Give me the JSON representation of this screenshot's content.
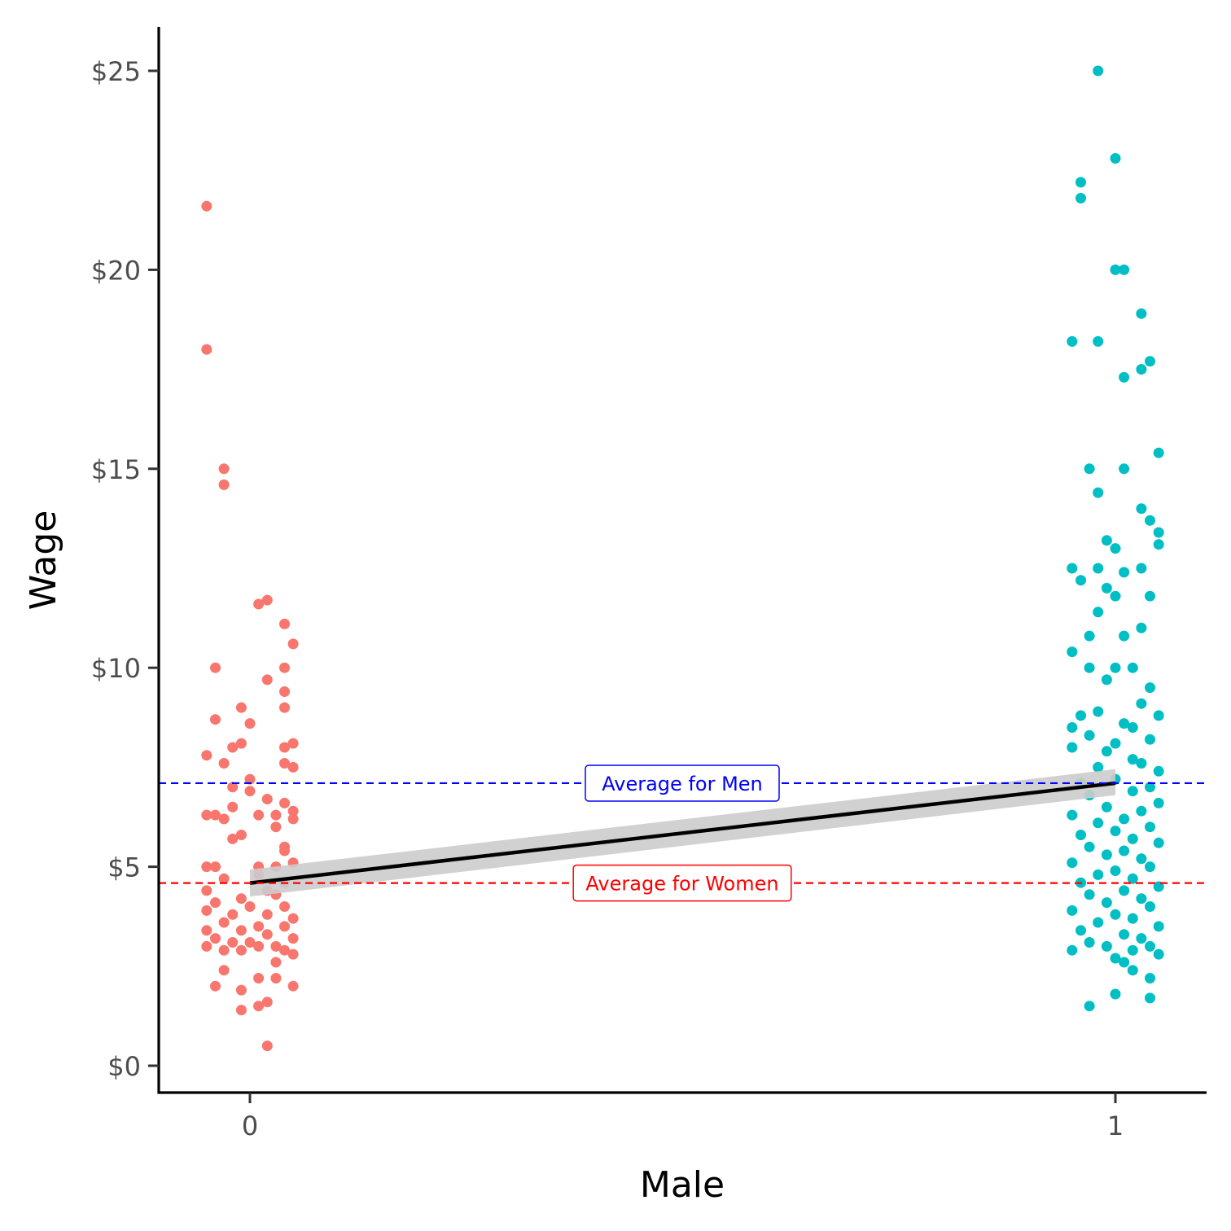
{
  "chart_data": {
    "type": "scatter",
    "xlabel": "Male",
    "ylabel": "Wage",
    "x_ticks": [
      "0",
      "1"
    ],
    "y_ticks": [
      "$0",
      "$5",
      "$10",
      "$15",
      "$20",
      "$25"
    ],
    "xlim": [
      -0.1,
      1.1
    ],
    "ylim": [
      -0.6,
      26.2
    ],
    "grid": false,
    "legend": "none",
    "colors": {
      "women": "#F8766D",
      "men": "#00BFC4",
      "fit_line": "#000000",
      "fit_band": "#cccccc",
      "women_avg": "#FF0000",
      "men_avg": "#0000FF"
    },
    "fit": {
      "x": [
        0,
        1
      ],
      "y": [
        4.59,
        7.1
      ],
      "se_band": [
        [
          4.25,
          4.93
        ],
        [
          6.8,
          7.45
        ]
      ]
    },
    "annotations": [
      {
        "text": "Average for Men",
        "y": 7.1,
        "color": "#0000FF"
      },
      {
        "text": "Average for Women",
        "y": 4.59,
        "color": "#FF0000"
      }
    ],
    "series": [
      {
        "group": "0",
        "points": [
          [
            -0.05,
            21.6
          ],
          [
            -0.05,
            18.0
          ],
          [
            -0.03,
            15.0
          ],
          [
            -0.03,
            14.6
          ],
          [
            0.02,
            11.7
          ],
          [
            0.01,
            11.6
          ],
          [
            0.04,
            11.1
          ],
          [
            0.05,
            10.6
          ],
          [
            -0.04,
            10.0
          ],
          [
            0.04,
            10.0
          ],
          [
            0.02,
            9.7
          ],
          [
            0.04,
            9.4
          ],
          [
            -0.01,
            9.0
          ],
          [
            0.04,
            9.0
          ],
          [
            -0.04,
            8.7
          ],
          [
            0.0,
            8.6
          ],
          [
            0.05,
            8.1
          ],
          [
            -0.01,
            8.1
          ],
          [
            -0.02,
            8.0
          ],
          [
            0.04,
            8.0
          ],
          [
            -0.05,
            7.8
          ],
          [
            0.04,
            7.6
          ],
          [
            -0.03,
            7.6
          ],
          [
            0.05,
            7.5
          ],
          [
            0.0,
            7.2
          ],
          [
            -0.02,
            7.0
          ],
          [
            0.0,
            6.9
          ],
          [
            0.02,
            6.7
          ],
          [
            0.04,
            6.6
          ],
          [
            -0.02,
            6.5
          ],
          [
            0.05,
            6.4
          ],
          [
            -0.04,
            6.3
          ],
          [
            -0.05,
            6.3
          ],
          [
            0.01,
            6.3
          ],
          [
            0.03,
            6.3
          ],
          [
            0.05,
            6.2
          ],
          [
            -0.03,
            6.2
          ],
          [
            0.03,
            6.0
          ],
          [
            -0.01,
            5.8
          ],
          [
            -0.02,
            5.7
          ],
          [
            0.04,
            5.5
          ],
          [
            0.04,
            5.4
          ],
          [
            0.05,
            5.1
          ],
          [
            -0.05,
            5.0
          ],
          [
            0.03,
            5.0
          ],
          [
            0.01,
            5.0
          ],
          [
            -0.04,
            5.0
          ],
          [
            0.01,
            4.8
          ],
          [
            -0.03,
            4.7
          ],
          [
            0.04,
            4.6
          ],
          [
            -0.05,
            4.4
          ],
          [
            0.02,
            4.4
          ],
          [
            0.03,
            4.3
          ],
          [
            -0.01,
            4.2
          ],
          [
            -0.04,
            4.1
          ],
          [
            0.0,
            4.0
          ],
          [
            0.04,
            4.0
          ],
          [
            -0.05,
            3.9
          ],
          [
            -0.02,
            3.8
          ],
          [
            0.02,
            3.8
          ],
          [
            0.05,
            3.7
          ],
          [
            -0.03,
            3.6
          ],
          [
            0.01,
            3.5
          ],
          [
            0.04,
            3.5
          ],
          [
            -0.05,
            3.4
          ],
          [
            -0.01,
            3.4
          ],
          [
            0.02,
            3.3
          ],
          [
            -0.04,
            3.2
          ],
          [
            0.05,
            3.2
          ],
          [
            0.0,
            3.1
          ],
          [
            -0.02,
            3.1
          ],
          [
            0.03,
            3.0
          ],
          [
            -0.05,
            3.0
          ],
          [
            0.01,
            3.0
          ],
          [
            -0.03,
            2.9
          ],
          [
            0.04,
            2.9
          ],
          [
            -0.01,
            2.9
          ],
          [
            0.05,
            2.8
          ],
          [
            0.03,
            2.6
          ],
          [
            -0.03,
            2.4
          ],
          [
            0.01,
            2.2
          ],
          [
            0.03,
            2.2
          ],
          [
            0.05,
            2.0
          ],
          [
            -0.04,
            2.0
          ],
          [
            -0.01,
            1.9
          ],
          [
            0.02,
            1.6
          ],
          [
            0.01,
            1.5
          ],
          [
            -0.01,
            1.4
          ],
          [
            0.02,
            0.5
          ]
        ]
      },
      {
        "group": "1",
        "points": [
          [
            -0.02,
            25.0
          ],
          [
            0.0,
            22.8
          ],
          [
            -0.04,
            22.2
          ],
          [
            -0.04,
            21.8
          ],
          [
            0.01,
            20.0
          ],
          [
            0.0,
            20.0
          ],
          [
            0.03,
            18.9
          ],
          [
            -0.05,
            18.2
          ],
          [
            -0.02,
            18.2
          ],
          [
            0.04,
            17.7
          ],
          [
            0.03,
            17.5
          ],
          [
            0.01,
            17.3
          ],
          [
            0.05,
            15.4
          ],
          [
            0.01,
            15.0
          ],
          [
            -0.03,
            15.0
          ],
          [
            -0.02,
            14.4
          ],
          [
            0.03,
            14.0
          ],
          [
            0.04,
            13.7
          ],
          [
            0.05,
            13.4
          ],
          [
            -0.01,
            13.2
          ],
          [
            0.05,
            13.1
          ],
          [
            0.0,
            13.0
          ],
          [
            -0.05,
            12.5
          ],
          [
            -0.02,
            12.5
          ],
          [
            0.03,
            12.5
          ],
          [
            0.01,
            12.4
          ],
          [
            -0.04,
            12.2
          ],
          [
            -0.01,
            12.0
          ],
          [
            0.0,
            11.8
          ],
          [
            0.04,
            11.8
          ],
          [
            -0.02,
            11.4
          ],
          [
            0.03,
            11.0
          ],
          [
            -0.03,
            10.8
          ],
          [
            0.01,
            10.8
          ],
          [
            -0.05,
            10.4
          ],
          [
            -0.03,
            10.0
          ],
          [
            0.0,
            10.0
          ],
          [
            0.02,
            10.0
          ],
          [
            -0.01,
            9.7
          ],
          [
            0.04,
            9.5
          ],
          [
            0.03,
            9.1
          ],
          [
            -0.02,
            8.9
          ],
          [
            -0.04,
            8.8
          ],
          [
            0.05,
            8.8
          ],
          [
            0.01,
            8.6
          ],
          [
            -0.05,
            8.5
          ],
          [
            0.02,
            8.5
          ],
          [
            -0.03,
            8.3
          ],
          [
            0.04,
            8.2
          ],
          [
            0.0,
            8.1
          ],
          [
            -0.05,
            8.0
          ],
          [
            -0.01,
            7.9
          ],
          [
            0.02,
            7.7
          ],
          [
            0.03,
            7.6
          ],
          [
            -0.02,
            7.5
          ],
          [
            0.05,
            7.4
          ],
          [
            0.0,
            7.2
          ],
          [
            -0.04,
            7.1
          ],
          [
            0.04,
            7.0
          ],
          [
            0.02,
            6.9
          ],
          [
            -0.03,
            6.8
          ],
          [
            0.05,
            6.6
          ],
          [
            -0.01,
            6.5
          ],
          [
            0.03,
            6.4
          ],
          [
            -0.05,
            6.3
          ],
          [
            0.01,
            6.2
          ],
          [
            -0.02,
            6.1
          ],
          [
            0.04,
            6.0
          ],
          [
            0.0,
            5.9
          ],
          [
            -0.04,
            5.8
          ],
          [
            0.02,
            5.7
          ],
          [
            0.05,
            5.6
          ],
          [
            -0.03,
            5.5
          ],
          [
            0.01,
            5.4
          ],
          [
            -0.01,
            5.3
          ],
          [
            0.03,
            5.2
          ],
          [
            -0.05,
            5.1
          ],
          [
            0.04,
            5.0
          ],
          [
            0.0,
            4.9
          ],
          [
            -0.02,
            4.8
          ],
          [
            0.02,
            4.7
          ],
          [
            -0.04,
            4.6
          ],
          [
            0.05,
            4.5
          ],
          [
            0.01,
            4.4
          ],
          [
            -0.03,
            4.3
          ],
          [
            0.03,
            4.2
          ],
          [
            -0.01,
            4.1
          ],
          [
            0.04,
            4.0
          ],
          [
            -0.05,
            3.9
          ],
          [
            0.0,
            3.8
          ],
          [
            0.02,
            3.7
          ],
          [
            -0.02,
            3.6
          ],
          [
            0.05,
            3.5
          ],
          [
            -0.04,
            3.4
          ],
          [
            0.01,
            3.3
          ],
          [
            0.03,
            3.2
          ],
          [
            -0.03,
            3.1
          ],
          [
            0.04,
            3.0
          ],
          [
            -0.01,
            3.0
          ],
          [
            -0.05,
            2.9
          ],
          [
            0.02,
            2.9
          ],
          [
            0.05,
            2.8
          ],
          [
            0.0,
            2.7
          ],
          [
            0.01,
            2.6
          ],
          [
            0.02,
            2.4
          ],
          [
            0.04,
            2.2
          ],
          [
            0.04,
            1.7
          ],
          [
            0.0,
            1.8
          ],
          [
            -0.03,
            1.5
          ]
        ]
      }
    ]
  }
}
